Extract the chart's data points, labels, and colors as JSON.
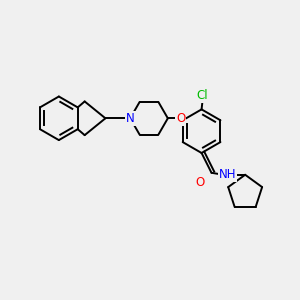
{
  "bg_color": "#f0f0f0",
  "bond_color": "#000000",
  "bond_width": 1.4,
  "atom_colors": {
    "N": "#0000ff",
    "O": "#ff0000",
    "Cl": "#00bb00",
    "C": "#000000"
  },
  "font_size": 8.5,
  "fig_size": [
    3.0,
    3.0
  ],
  "dpi": 100
}
